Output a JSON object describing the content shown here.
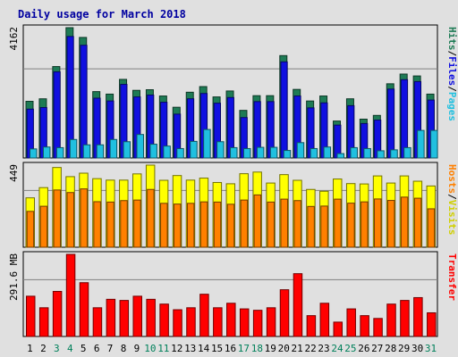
{
  "chart_data": {
    "type": "bar",
    "title": "Daily usage for March 2018",
    "x": [
      "1",
      "2",
      "3",
      "4",
      "5",
      "6",
      "7",
      "8",
      "9",
      "10",
      "11",
      "12",
      "13",
      "14",
      "15",
      "16",
      "17",
      "18",
      "19",
      "20",
      "21",
      "22",
      "23",
      "24",
      "25",
      "26",
      "27",
      "28",
      "29",
      "30",
      "31"
    ],
    "weekend_days": [
      "3",
      "4",
      "10",
      "11",
      "17",
      "18",
      "24",
      "25",
      "31"
    ],
    "panels": [
      {
        "name": "hits-files-pages",
        "max_label": "4162",
        "ylim": [
          0,
          4162
        ],
        "axis_labels": [
          "Hits",
          "Files",
          "Pages"
        ],
        "series": [
          {
            "name": "Hits",
            "color": "#1e7b55",
            "values": [
              1810,
              1890,
              2920,
              4162,
              3850,
              2120,
              2040,
              2510,
              2160,
              2180,
              1980,
              1620,
              2100,
              2280,
              1950,
              2140,
              1520,
              1990,
              1990,
              3270,
              2190,
              1820,
              1980,
              1180,
              1890,
              1240,
              1360,
              2370,
              2680,
              2620,
              2040
            ]
          },
          {
            "name": "Files",
            "color": "#1010e0",
            "values": [
              1560,
              1610,
              2750,
              3880,
              3600,
              1910,
              1820,
              2350,
              1950,
              2010,
              1780,
              1400,
              1890,
              2060,
              1750,
              1930,
              1290,
              1800,
              1800,
              3070,
              1980,
              1600,
              1760,
              1050,
              1670,
              1100,
              1210,
              2200,
              2500,
              2440,
              1850
            ]
          },
          {
            "name": "Pages",
            "color": "#20c0e0",
            "values": [
              290,
              350,
              330,
              590,
              420,
              420,
              590,
              520,
              750,
              440,
              380,
              300,
              530,
              910,
              520,
              330,
              300,
              340,
              340,
              240,
              490,
              300,
              350,
              140,
              330,
              300,
              230,
              260,
              330,
              880,
              880
            ]
          }
        ]
      },
      {
        "name": "hosts-visits",
        "max_label": "449",
        "ylim": [
          0,
          449
        ],
        "axis_labels": [
          "Hosts",
          "Visits"
        ],
        "series": [
          {
            "name": "Visits",
            "color": "#ffff00",
            "values": [
              270,
              326,
              436,
              386,
              405,
              375,
              367,
              367,
              401,
              449,
              366,
              392,
              367,
              378,
              354,
              347,
              402,
              411,
              351,
              397,
              366,
              316,
              306,
              373,
              348,
              346,
              390,
              351,
              390,
              361,
              335
            ]
          },
          {
            "name": "Hosts",
            "color": "#ff8000",
            "values": [
              196,
              224,
              313,
              299,
              319,
              249,
              247,
              255,
              258,
              316,
              240,
              236,
              240,
              248,
              247,
              235,
              258,
              286,
              247,
              263,
              255,
              223,
              225,
              263,
              241,
              248,
              264,
              256,
              274,
              268,
              210
            ]
          }
        ]
      },
      {
        "name": "transfer",
        "max_label": "291.6 MB",
        "ylim": [
          0,
          291.6
        ],
        "axis_labels": [
          "Transfer"
        ],
        "series": [
          {
            "name": "Transfer",
            "color": "#ff0000",
            "values": [
              143,
              102,
              160,
              291.6,
              191,
              102,
              132,
              128,
              143,
              132,
              115,
              95,
              102,
              150,
              102,
              118,
              98,
              93,
              102,
              166,
              223,
              74,
              118,
              51,
              98,
              74,
              64,
              115,
              128,
              138,
              84
            ]
          }
        ]
      }
    ]
  }
}
